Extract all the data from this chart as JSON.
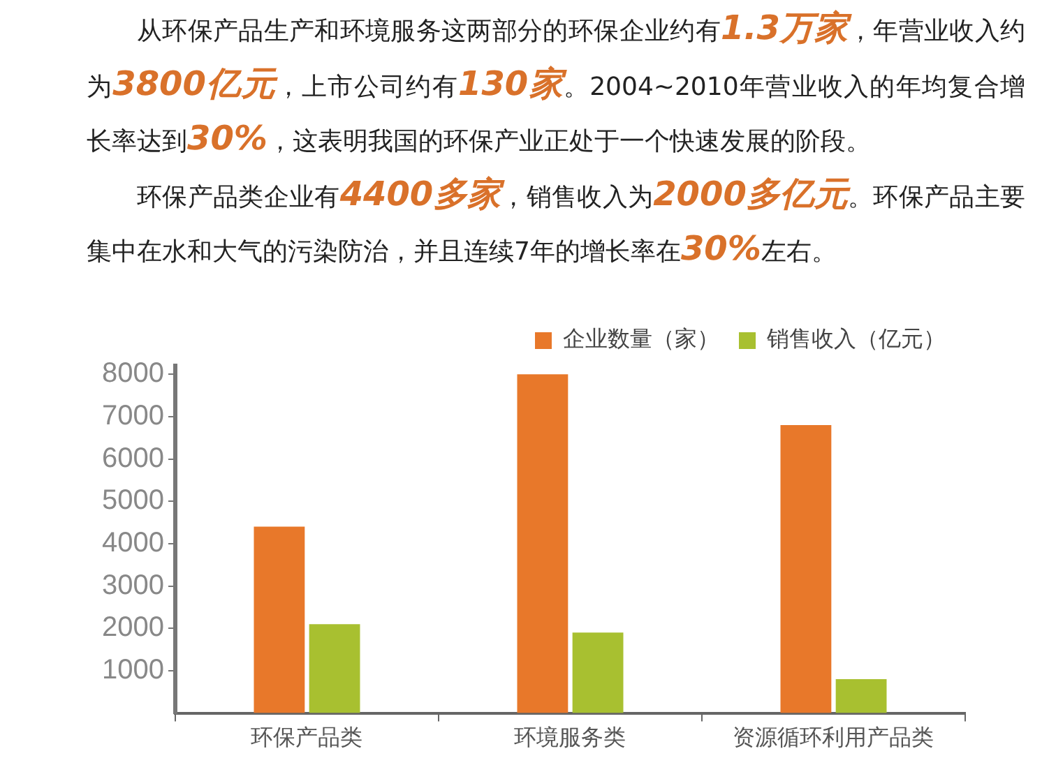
{
  "chart_data": {
    "type": "bar",
    "annotations": [
      "从环保产品生产和环境服务这两部分的环保企业约有1.3万家，年营业收入约为3800亿元，上市公司约有130家。2004~2010年营业收入的年均复合增长率达到30%，这表明我国的环保产业正处于一个快速发展的阶段。",
      "环保产品类企业有4400多家，销售收入为2000多亿元。环保产品主要集中在水和大气的污染防治，并且连续7年的增长率在30%左右。"
    ],
    "categories": [
      "环保产品类",
      "环境服务类",
      "资源循环利用产品类"
    ],
    "series": [
      {
        "name": "企业数量（家）",
        "color": "#e8782a",
        "values": [
          4400,
          8000,
          6800
        ]
      },
      {
        "name": "销售收入（亿元）",
        "color": "#a8c030",
        "values": [
          2100,
          1900,
          800
        ]
      }
    ],
    "ylim": [
      0,
      8200
    ],
    "yticks": [
      1000,
      2000,
      3000,
      4000,
      5000,
      6000,
      7000,
      8000
    ],
    "grid": false,
    "legend": "top right"
  }
}
